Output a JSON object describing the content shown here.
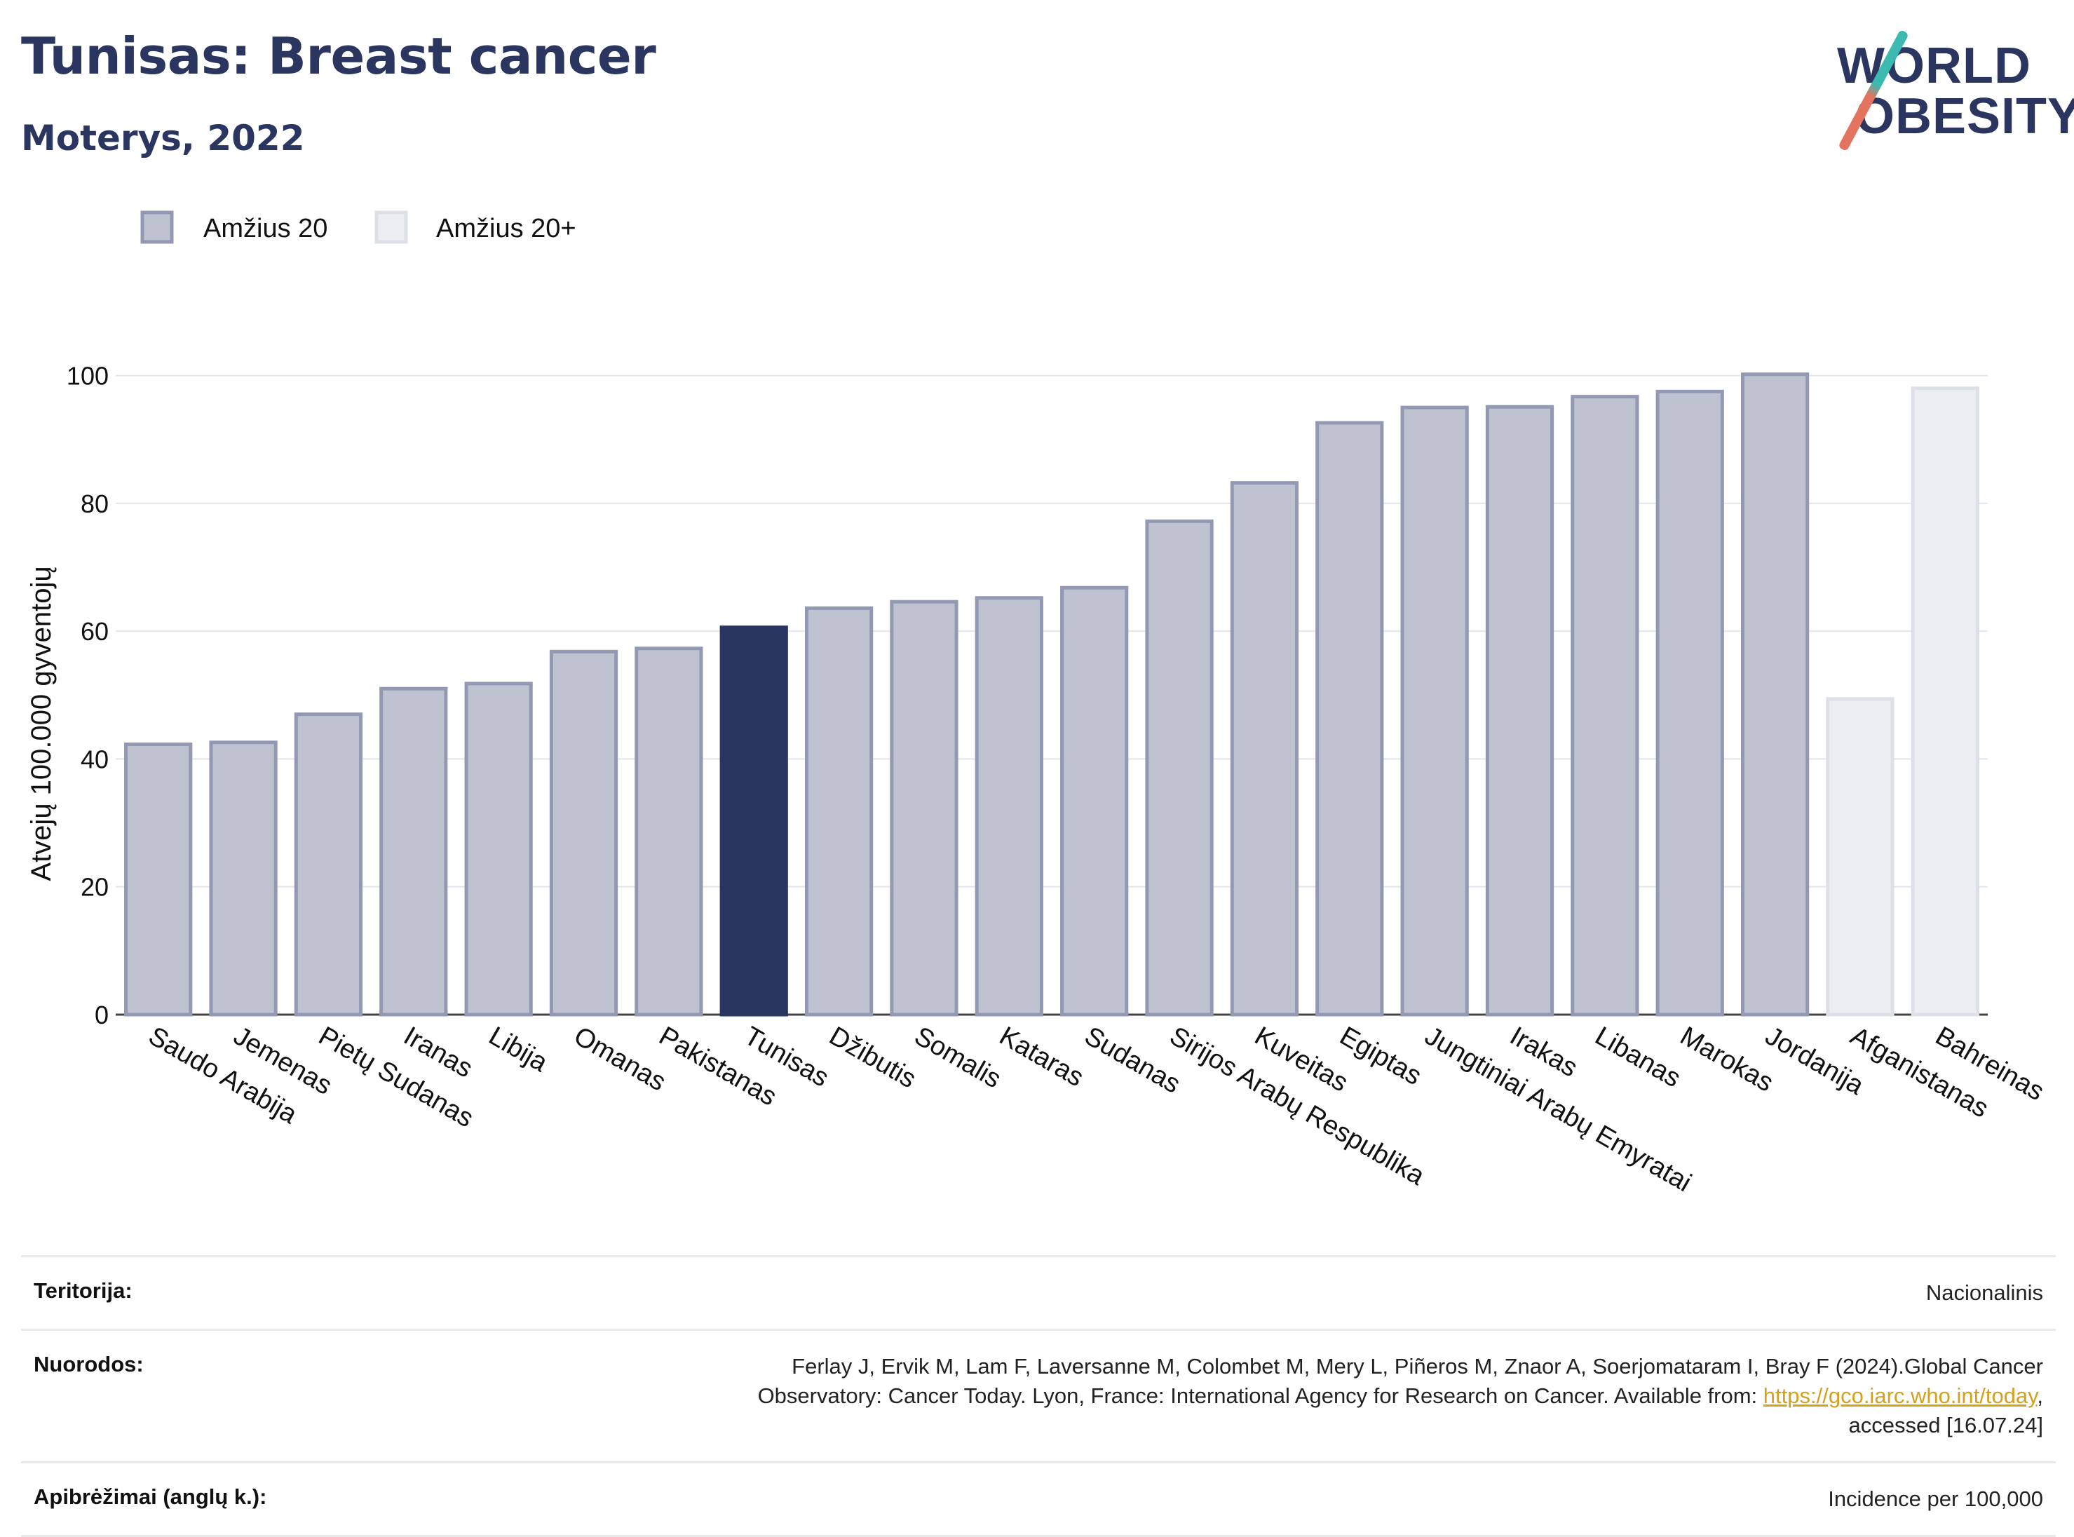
{
  "header": {
    "title": "Tunisas: Breast cancer",
    "subtitle": "Moterys, 2022"
  },
  "logo": {
    "line1": "WORLD",
    "line2": "OBESITY"
  },
  "colors": {
    "bar_fill": "#bfc2d0",
    "bar_stroke": "#9499b3",
    "highlight_fill": "#2a3560",
    "plus_fill": "#eceef2",
    "plus_stroke": "#dde0e7",
    "title": "#2a3560"
  },
  "legend": [
    {
      "label": "Amžius 20"
    },
    {
      "label": "Amžius 20+"
    }
  ],
  "chart_data": {
    "type": "bar",
    "ylabel": "Atvejų 100.000 gyventojų",
    "xlabel": "",
    "ylim": [
      0,
      105
    ],
    "yticks": [
      0,
      20,
      40,
      60,
      80,
      100
    ],
    "grid": true,
    "legend_position": "top-left",
    "highlight": "Tunisas",
    "categories": [
      "Saudo Arabija",
      "Jemenas",
      "Pietų Sudanas",
      "Iranas",
      "Libija",
      "Omanas",
      "Pakistanas",
      "Tunisas",
      "Džibutis",
      "Somalis",
      "Kataras",
      "Sudanas",
      "Sirijos Arabų Respublika",
      "Kuveitas",
      "Egiptas",
      "Jungtiniai Arabų Emyratai",
      "Irakas",
      "Libanas",
      "Marokas",
      "Jordanija",
      "Afganistanas",
      "Bahreinas"
    ],
    "values": [
      42.3,
      42.6,
      47.0,
      51.0,
      51.8,
      56.8,
      57.3,
      60.6,
      63.6,
      64.6,
      65.2,
      66.8,
      77.2,
      83.2,
      92.6,
      95.0,
      95.1,
      96.7,
      97.5,
      100.2,
      49.4,
      98.0
    ],
    "series_of_bar": [
      "Amžius 20",
      "Amžius 20",
      "Amžius 20",
      "Amžius 20",
      "Amžius 20",
      "Amžius 20",
      "Amžius 20",
      "Amžius 20",
      "Amžius 20",
      "Amžius 20",
      "Amžius 20",
      "Amžius 20",
      "Amžius 20",
      "Amžius 20",
      "Amžius 20",
      "Amžius 20",
      "Amžius 20",
      "Amžius 20",
      "Amžius 20",
      "Amžius 20",
      "Amžius 20+",
      "Amžius 20+"
    ]
  },
  "footer": {
    "territory_label": "Teritorija:",
    "territory_value": "Nacionalinis",
    "refs_label": "Nuorodos:",
    "refs_text_1": "Ferlay J, Ervik M, Lam F, Laversanne M, Colombet M, Mery L, Piñeros M, Znaor A, Soerjomataram I, Bray F (2024).Global Cancer",
    "refs_text_2": "Observatory: Cancer Today. Lyon, France: International Agency for Research on Cancer. Available from: ",
    "refs_link": "https://gco.iarc.who.int/today",
    "refs_text_3": ",",
    "refs_text_4": "accessed [16.07.24]",
    "definitions_label": "Apibrėžimai (anglų k.):",
    "definitions_value": "Incidence per 100,000"
  }
}
